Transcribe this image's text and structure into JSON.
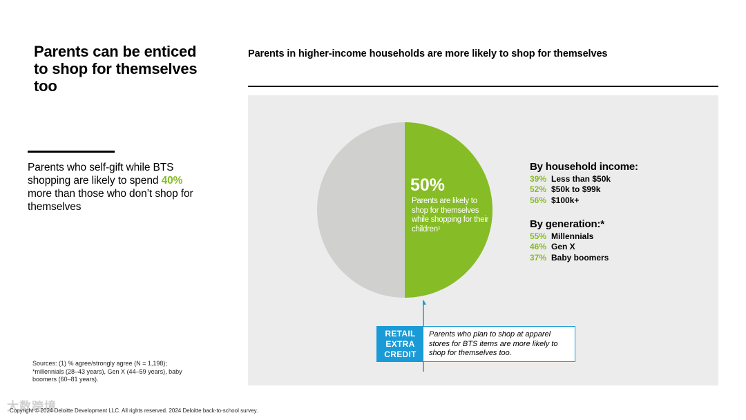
{
  "left": {
    "title": "Parents can be enticed to shop for themselves too",
    "body_prefix": "Parents who self-gift while BTS shopping are likely to spend ",
    "body_highlight": "40%",
    "body_suffix": " more than those who don’t shop for themselves",
    "highlight_color": "#86bc25",
    "sources": "Sources: (1) % agree/strongly agree (N = 1,198); *millennials (28–43 years), Gen X (44–59 years), baby boomers (60–81 years).",
    "copyright": "Copyright © 2024 Deloitte Development LLC. All rights reserved. 2024 Deloitte back-to-school survey.",
    "watermark": "大数跨境"
  },
  "chart_data": {
    "type": "pie",
    "title": "Parents in higher-income households are more likely to shop for themselves",
    "slices": [
      {
        "label": "Parents are likely to shop for themselves while shopping for their children¹",
        "value": 50,
        "display": "50%",
        "color": "#86bc25"
      },
      {
        "label": "",
        "value": 50,
        "color": "#d0d0cf"
      }
    ],
    "groups": [
      {
        "heading": "By household income:",
        "items": [
          {
            "value": "39%",
            "label": "Less than $50k"
          },
          {
            "value": "52%",
            "label": "$50k to $99k"
          },
          {
            "value": "56%",
            "label": "$100k+"
          }
        ]
      },
      {
        "heading": "By generation:*",
        "items": [
          {
            "value": "55%",
            "label": "Millennials"
          },
          {
            "value": "46%",
            "label": "Gen X"
          },
          {
            "value": "37%",
            "label": "Baby boomers"
          }
        ]
      }
    ]
  },
  "callout": {
    "tag": "RETAIL EXTRA CREDIT",
    "text": "Parents who plan to shop at apparel stores for BTS items are more likely to shop for themselves too.",
    "color": "#1a9ad6"
  }
}
